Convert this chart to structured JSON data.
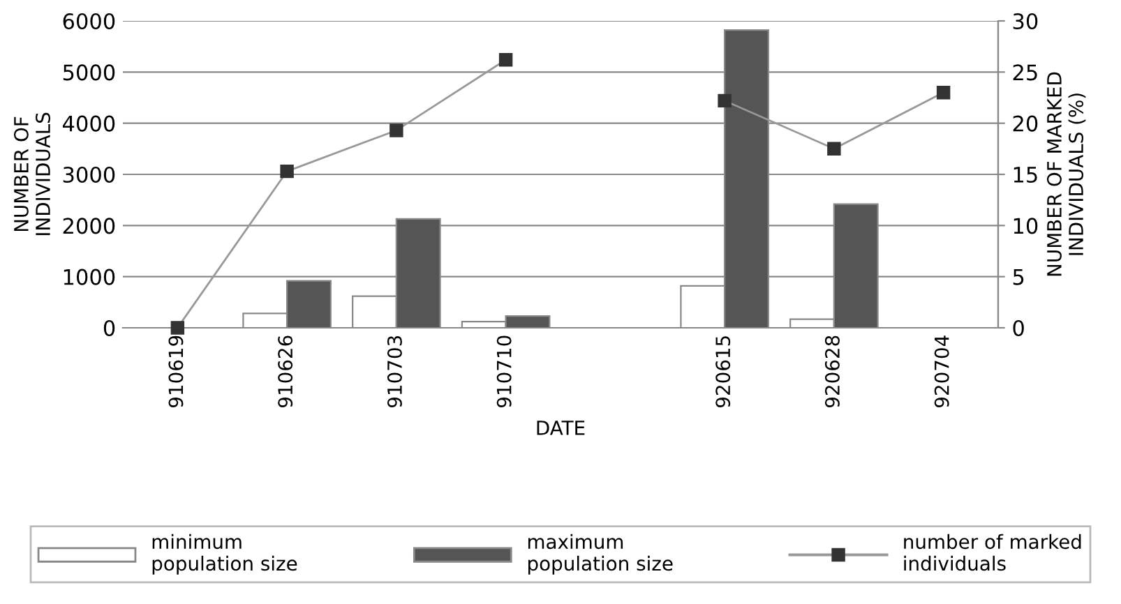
{
  "chart_data": {
    "type": "bar",
    "xlabel": "DATE",
    "ylabel": "NUMBER OF\nINDIVIDUALS",
    "y2label": "NUMBER OF MARKED\nINDIVIDUALS (%)",
    "categories": [
      "910619",
      "910626",
      "910703",
      "910710",
      null,
      "920615",
      "920628",
      "920704"
    ],
    "series": [
      {
        "name": "minimum\npopulation size",
        "color": "#ffffff",
        "values": [
          0,
          280,
          620,
          120,
          null,
          820,
          170,
          0
        ]
      },
      {
        "name": "maximum\npopulation size",
        "color": "#555555",
        "values": [
          0,
          920,
          2130,
          230,
          null,
          5820,
          2420,
          0
        ]
      },
      {
        "name": "number of marked\nindividuals",
        "type": "line",
        "axis": "y2",
        "color": "#333333",
        "marker": "square",
        "values": [
          0,
          15.3,
          19.3,
          26.2,
          null,
          22.2,
          17.5,
          23
        ]
      }
    ],
    "ylim": [
      0,
      6000
    ],
    "yticks": [
      0,
      1000,
      2000,
      3000,
      4000,
      5000,
      6000
    ],
    "y2lim": [
      0,
      30
    ],
    "y2ticks": [
      0,
      5,
      10,
      15,
      20,
      25,
      30
    ],
    "grid": "y",
    "legend": "bottom"
  }
}
